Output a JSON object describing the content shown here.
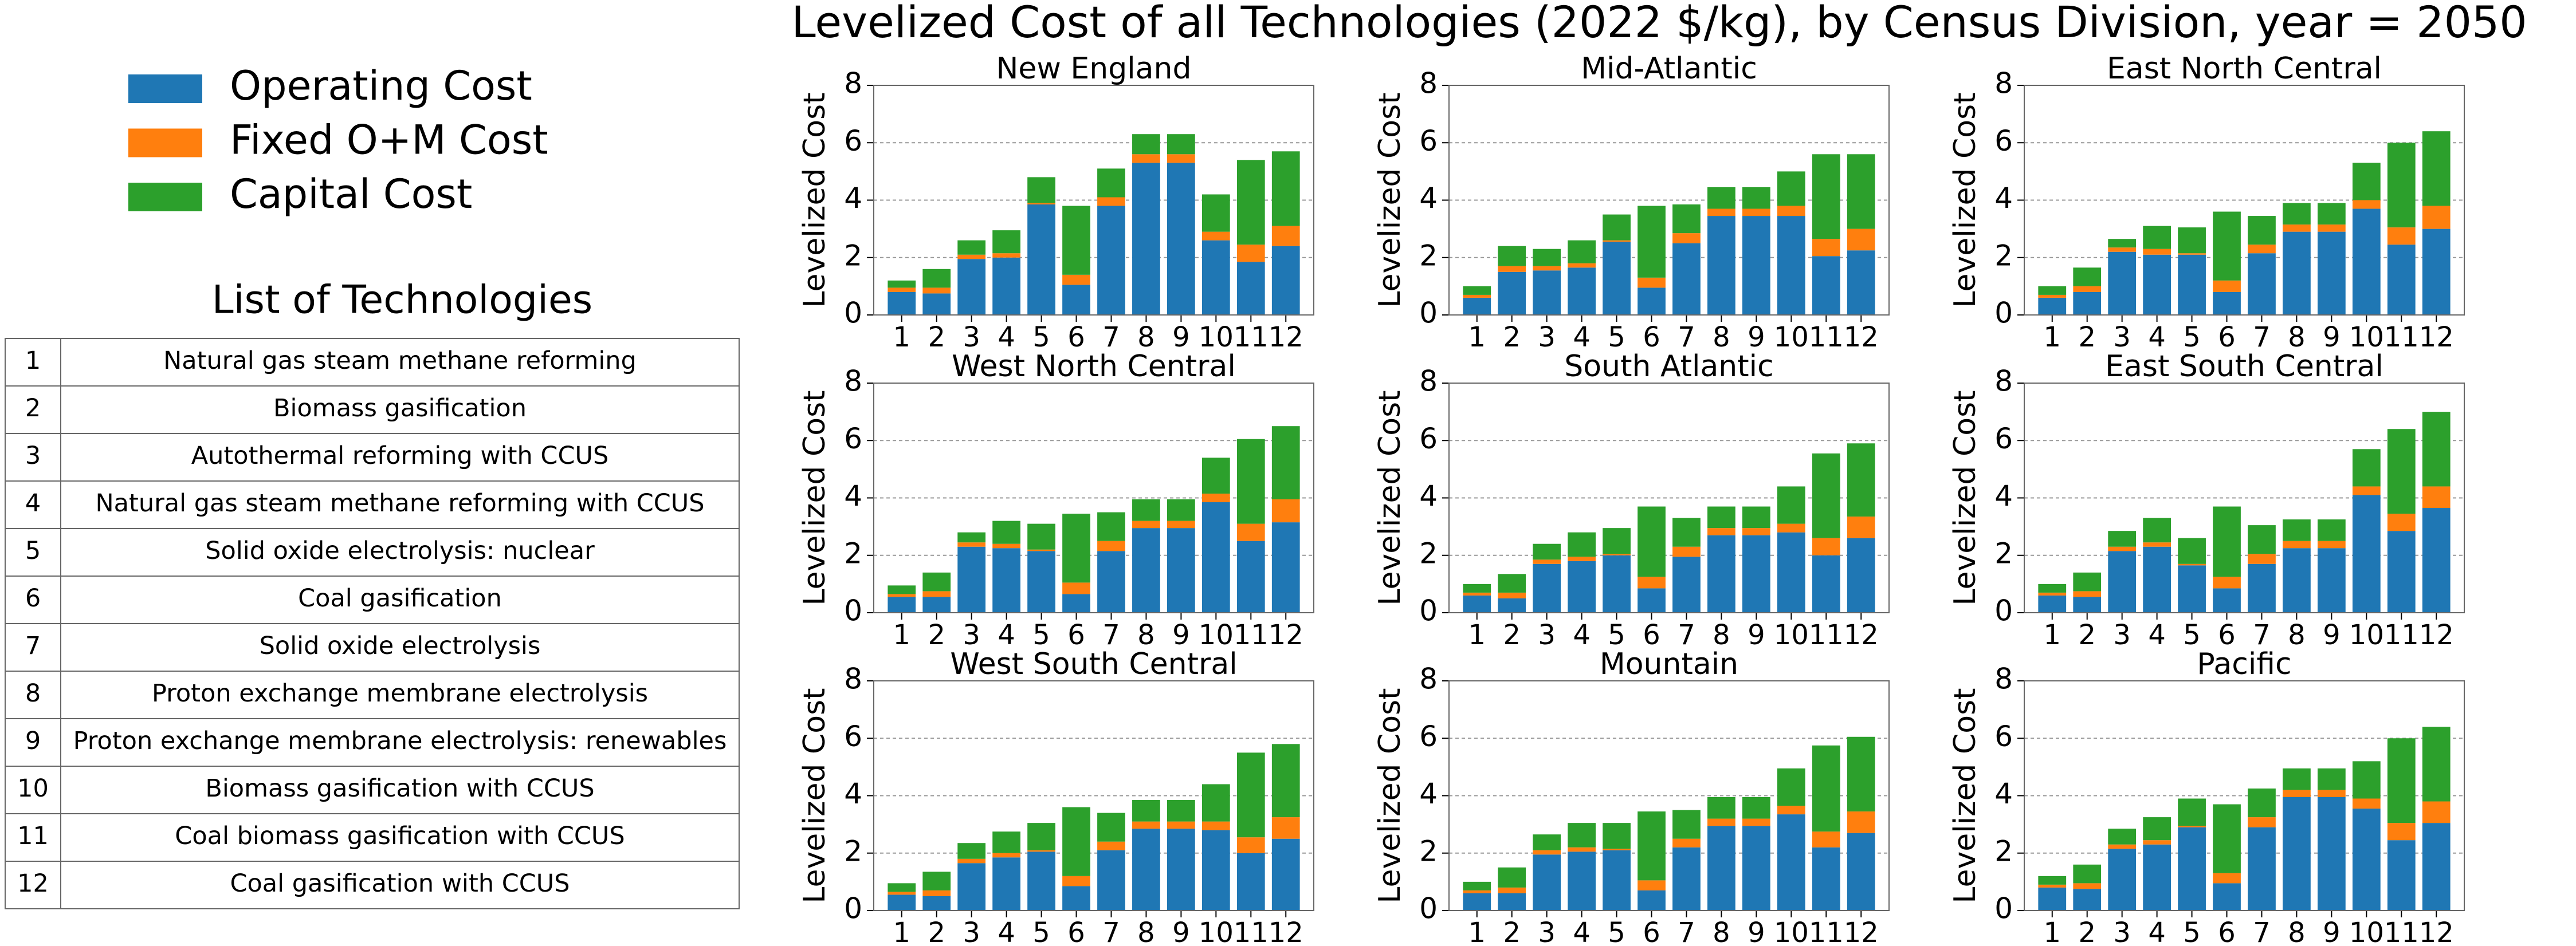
{
  "title": "Levelized Cost of all Technologies (2022 $/kg), by Census Division, year = 2050",
  "legend": [
    {
      "name": "Operating Cost",
      "color": "#1f77b4"
    },
    {
      "name": "Fixed O+M Cost",
      "color": "#ff7f0e"
    },
    {
      "name": "Capital Cost",
      "color": "#2ca02c"
    }
  ],
  "table": {
    "title": "List of Technologies",
    "rows": [
      [
        "1",
        "Natural gas steam methane reforming"
      ],
      [
        "2",
        "Biomass gasification"
      ],
      [
        "3",
        "Autothermal reforming with CCUS"
      ],
      [
        "4",
        "Natural gas steam methane reforming with CCUS"
      ],
      [
        "5",
        "Solid oxide electrolysis: nuclear"
      ],
      [
        "6",
        "Coal gasification"
      ],
      [
        "7",
        "Solid oxide electrolysis"
      ],
      [
        "8",
        "Proton exchange membrane electrolysis"
      ],
      [
        "9",
        "Proton exchange membrane electrolysis: renewables"
      ],
      [
        "10",
        "Biomass gasification with CCUS"
      ],
      [
        "11",
        "Coal biomass gasification with CCUS"
      ],
      [
        "12",
        "Coal gasification with CCUS"
      ]
    ]
  },
  "chart_data": [
    {
      "type": "bar",
      "title": "New England",
      "ylabel": "Levelized Cost",
      "categories": [
        "1",
        "2",
        "3",
        "4",
        "5",
        "6",
        "7",
        "8",
        "9",
        "10",
        "11",
        "12"
      ],
      "ylim": [
        0,
        8
      ],
      "yticks": [
        0,
        2,
        4,
        6,
        8
      ],
      "grid": true,
      "series": [
        {
          "values": [
            0.8,
            0.75,
            1.95,
            2.0,
            3.85,
            1.05,
            3.8,
            5.3,
            5.3,
            2.6,
            1.85,
            2.4
          ]
        },
        {
          "values": [
            0.15,
            0.2,
            0.15,
            0.15,
            0.05,
            0.35,
            0.3,
            0.3,
            0.3,
            0.3,
            0.6,
            0.7
          ]
        },
        {
          "values": [
            0.25,
            0.65,
            0.5,
            0.8,
            0.9,
            2.4,
            1.0,
            0.7,
            0.7,
            1.3,
            2.95,
            2.6
          ]
        }
      ]
    },
    {
      "type": "bar",
      "title": "Mid-Atlantic",
      "ylabel": "Levelized Cost",
      "categories": [
        "1",
        "2",
        "3",
        "4",
        "5",
        "6",
        "7",
        "8",
        "9",
        "10",
        "11",
        "12"
      ],
      "ylim": [
        0,
        8
      ],
      "yticks": [
        0,
        2,
        4,
        6,
        8
      ],
      "grid": true,
      "series": [
        {
          "values": [
            0.6,
            1.5,
            1.55,
            1.65,
            2.55,
            0.95,
            2.5,
            3.45,
            3.45,
            3.45,
            2.05,
            2.25
          ]
        },
        {
          "values": [
            0.1,
            0.2,
            0.15,
            0.15,
            0.05,
            0.35,
            0.35,
            0.25,
            0.25,
            0.35,
            0.6,
            0.75
          ]
        },
        {
          "values": [
            0.3,
            0.7,
            0.6,
            0.8,
            0.9,
            2.5,
            1.0,
            0.75,
            0.75,
            1.2,
            2.95,
            2.6
          ]
        }
      ]
    },
    {
      "type": "bar",
      "title": "East North Central",
      "ylabel": "Levelized Cost",
      "categories": [
        "1",
        "2",
        "3",
        "4",
        "5",
        "6",
        "7",
        "8",
        "9",
        "10",
        "11",
        "12"
      ],
      "ylim": [
        0,
        8
      ],
      "yticks": [
        0,
        2,
        4,
        6,
        8
      ],
      "grid": true,
      "series": [
        {
          "values": [
            0.6,
            0.8,
            2.2,
            2.1,
            2.1,
            0.8,
            2.15,
            2.9,
            2.9,
            3.7,
            2.45,
            3.0
          ]
        },
        {
          "values": [
            0.1,
            0.2,
            0.15,
            0.2,
            0.05,
            0.4,
            0.3,
            0.25,
            0.25,
            0.3,
            0.6,
            0.8
          ]
        },
        {
          "values": [
            0.3,
            0.65,
            0.3,
            0.8,
            0.9,
            2.4,
            1.0,
            0.75,
            0.75,
            1.3,
            2.95,
            2.6
          ]
        }
      ]
    },
    {
      "type": "bar",
      "title": "West North Central",
      "ylabel": "Levelized Cost",
      "categories": [
        "1",
        "2",
        "3",
        "4",
        "5",
        "6",
        "7",
        "8",
        "9",
        "10",
        "11",
        "12"
      ],
      "ylim": [
        0,
        8
      ],
      "yticks": [
        0,
        2,
        4,
        6,
        8
      ],
      "grid": true,
      "series": [
        {
          "values": [
            0.55,
            0.55,
            2.3,
            2.25,
            2.15,
            0.65,
            2.15,
            2.95,
            2.95,
            3.85,
            2.5,
            3.15
          ]
        },
        {
          "values": [
            0.1,
            0.2,
            0.15,
            0.15,
            0.05,
            0.4,
            0.35,
            0.25,
            0.25,
            0.3,
            0.6,
            0.8
          ]
        },
        {
          "values": [
            0.3,
            0.65,
            0.35,
            0.8,
            0.9,
            2.4,
            1.0,
            0.75,
            0.75,
            1.25,
            2.95,
            2.55
          ]
        }
      ]
    },
    {
      "type": "bar",
      "title": "South Atlantic",
      "ylabel": "Levelized Cost",
      "categories": [
        "1",
        "2",
        "3",
        "4",
        "5",
        "6",
        "7",
        "8",
        "9",
        "10",
        "11",
        "12"
      ],
      "ylim": [
        0,
        8
      ],
      "yticks": [
        0,
        2,
        4,
        6,
        8
      ],
      "grid": true,
      "series": [
        {
          "values": [
            0.6,
            0.5,
            1.7,
            1.8,
            2.0,
            0.85,
            1.95,
            2.7,
            2.7,
            2.8,
            2.0,
            2.6
          ]
        },
        {
          "values": [
            0.1,
            0.2,
            0.15,
            0.15,
            0.05,
            0.4,
            0.35,
            0.25,
            0.25,
            0.3,
            0.6,
            0.75
          ]
        },
        {
          "values": [
            0.3,
            0.65,
            0.55,
            0.85,
            0.9,
            2.45,
            1.0,
            0.75,
            0.75,
            1.3,
            2.95,
            2.55
          ]
        }
      ]
    },
    {
      "type": "bar",
      "title": "East South Central",
      "ylabel": "Levelized Cost",
      "categories": [
        "1",
        "2",
        "3",
        "4",
        "5",
        "6",
        "7",
        "8",
        "9",
        "10",
        "11",
        "12"
      ],
      "ylim": [
        0,
        8
      ],
      "yticks": [
        0,
        2,
        4,
        6,
        8
      ],
      "grid": true,
      "series": [
        {
          "values": [
            0.6,
            0.55,
            2.15,
            2.3,
            1.65,
            0.85,
            1.7,
            2.25,
            2.25,
            4.1,
            2.85,
            3.65
          ]
        },
        {
          "values": [
            0.1,
            0.2,
            0.15,
            0.15,
            0.05,
            0.4,
            0.35,
            0.25,
            0.25,
            0.3,
            0.6,
            0.75
          ]
        },
        {
          "values": [
            0.3,
            0.65,
            0.55,
            0.85,
            0.9,
            2.45,
            1.0,
            0.75,
            0.75,
            1.3,
            2.95,
            2.6
          ]
        }
      ]
    },
    {
      "type": "bar",
      "title": "West South Central",
      "ylabel": "Levelized Cost",
      "categories": [
        "1",
        "2",
        "3",
        "4",
        "5",
        "6",
        "7",
        "8",
        "9",
        "10",
        "11",
        "12"
      ],
      "ylim": [
        0,
        8
      ],
      "yticks": [
        0,
        2,
        4,
        6,
        8
      ],
      "grid": true,
      "series": [
        {
          "values": [
            0.55,
            0.5,
            1.65,
            1.85,
            2.05,
            0.85,
            2.1,
            2.85,
            2.85,
            2.8,
            2.0,
            2.5
          ]
        },
        {
          "values": [
            0.1,
            0.2,
            0.15,
            0.15,
            0.05,
            0.35,
            0.3,
            0.25,
            0.25,
            0.3,
            0.55,
            0.75
          ]
        },
        {
          "values": [
            0.3,
            0.65,
            0.55,
            0.75,
            0.95,
            2.4,
            1.0,
            0.75,
            0.75,
            1.3,
            2.95,
            2.55
          ]
        }
      ]
    },
    {
      "type": "bar",
      "title": "Mountain",
      "ylabel": "Levelized Cost",
      "categories": [
        "1",
        "2",
        "3",
        "4",
        "5",
        "6",
        "7",
        "8",
        "9",
        "10",
        "11",
        "12"
      ],
      "ylim": [
        0,
        8
      ],
      "yticks": [
        0,
        2,
        4,
        6,
        8
      ],
      "grid": true,
      "series": [
        {
          "values": [
            0.6,
            0.6,
            1.95,
            2.05,
            2.1,
            0.7,
            2.2,
            2.95,
            2.95,
            3.35,
            2.2,
            2.7
          ]
        },
        {
          "values": [
            0.1,
            0.2,
            0.15,
            0.15,
            0.05,
            0.35,
            0.3,
            0.25,
            0.25,
            0.3,
            0.55,
            0.75
          ]
        },
        {
          "values": [
            0.3,
            0.7,
            0.55,
            0.85,
            0.9,
            2.4,
            1.0,
            0.75,
            0.75,
            1.3,
            3.0,
            2.6
          ]
        }
      ]
    },
    {
      "type": "bar",
      "title": "Pacific",
      "ylabel": "Levelized Cost",
      "categories": [
        "1",
        "2",
        "3",
        "4",
        "5",
        "6",
        "7",
        "8",
        "9",
        "10",
        "11",
        "12"
      ],
      "ylim": [
        0,
        8
      ],
      "yticks": [
        0,
        2,
        4,
        6,
        8
      ],
      "grid": true,
      "series": [
        {
          "values": [
            0.8,
            0.75,
            2.15,
            2.3,
            2.9,
            0.95,
            2.9,
            3.95,
            3.95,
            3.55,
            2.45,
            3.05
          ]
        },
        {
          "values": [
            0.1,
            0.2,
            0.15,
            0.15,
            0.05,
            0.35,
            0.35,
            0.25,
            0.25,
            0.35,
            0.6,
            0.75
          ]
        },
        {
          "values": [
            0.3,
            0.65,
            0.55,
            0.8,
            0.95,
            2.4,
            1.0,
            0.75,
            0.75,
            1.3,
            2.95,
            2.6
          ]
        }
      ]
    }
  ]
}
